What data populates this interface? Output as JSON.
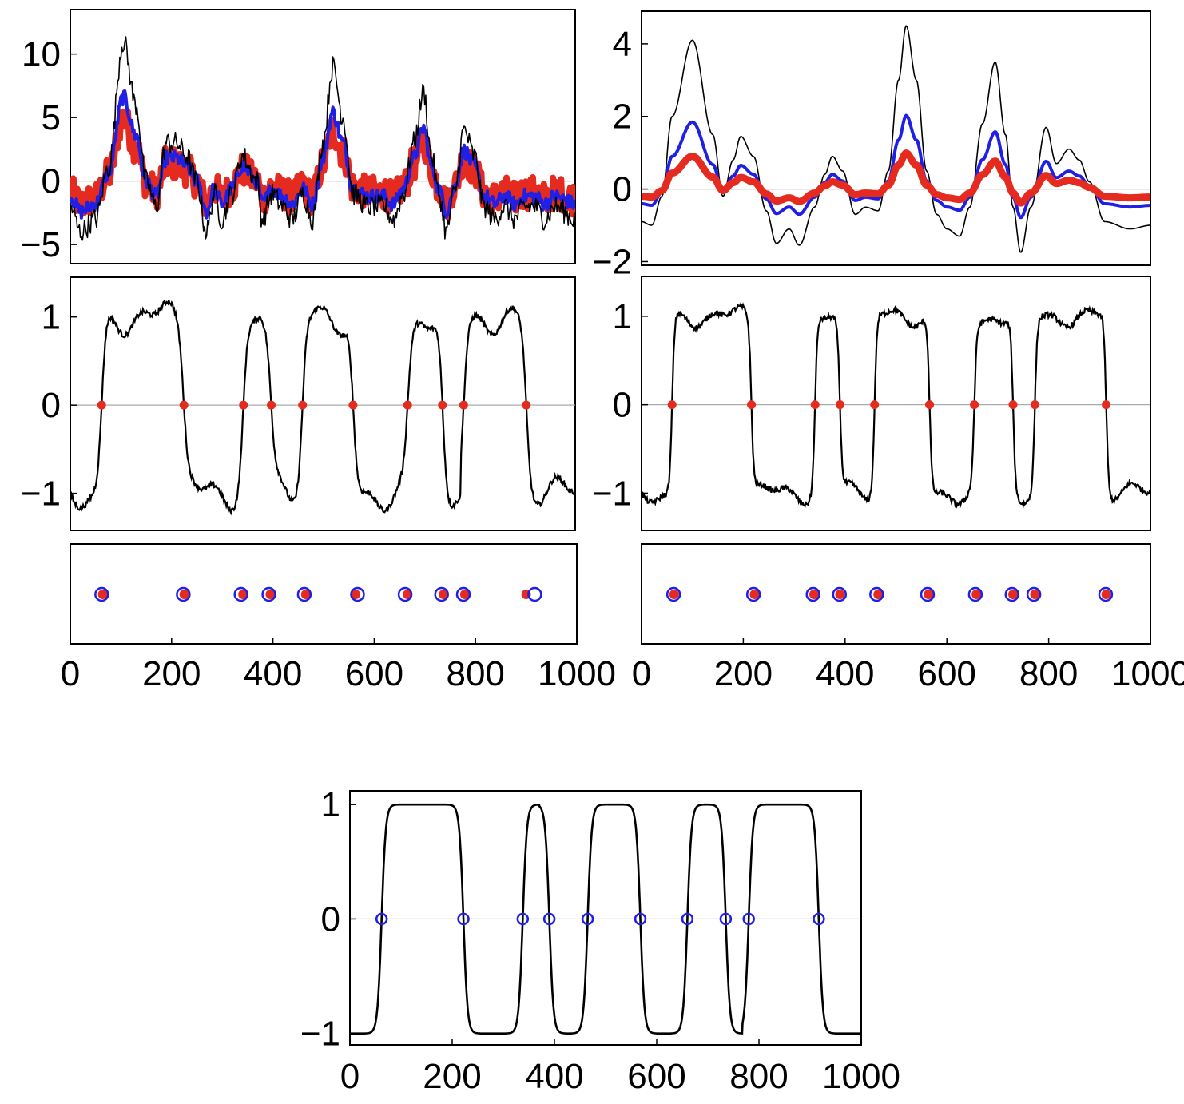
{
  "chart_data": [
    {
      "id": "panel-top-left",
      "type": "line",
      "xlim": [
        0,
        1000
      ],
      "ylim": [
        -6.5,
        13.5
      ],
      "yticks": [
        10,
        5,
        0,
        -5
      ],
      "ytick_labels": [
        "10",
        "5",
        "0",
        "−5"
      ],
      "series": [
        {
          "name": "black",
          "color": "#000000",
          "width": 1.6,
          "smooth_sigma": 6,
          "noise_amp": 0.9,
          "knots": [
            [
              0,
              -2
            ],
            [
              20,
              -4
            ],
            [
              50,
              -3
            ],
            [
              75,
              1
            ],
            [
              105,
              11
            ],
            [
              130,
              6
            ],
            [
              150,
              0
            ],
            [
              170,
              -2
            ],
            [
              190,
              3
            ],
            [
              210,
              3
            ],
            [
              230,
              2
            ],
            [
              250,
              0
            ],
            [
              270,
              -4
            ],
            [
              285,
              -1
            ],
            [
              300,
              -3
            ],
            [
              320,
              -1
            ],
            [
              340,
              2
            ],
            [
              370,
              0
            ],
            [
              380,
              -3
            ],
            [
              400,
              -1
            ],
            [
              420,
              -2
            ],
            [
              440,
              -3
            ],
            [
              460,
              -1
            ],
            [
              480,
              -3
            ],
            [
              500,
              3
            ],
            [
              520,
              9
            ],
            [
              540,
              5
            ],
            [
              560,
              -1
            ],
            [
              590,
              -2
            ],
            [
              620,
              -2
            ],
            [
              640,
              -3
            ],
            [
              660,
              -1
            ],
            [
              680,
              3
            ],
            [
              700,
              7
            ],
            [
              715,
              2
            ],
            [
              730,
              -1
            ],
            [
              745,
              -4
            ],
            [
              760,
              -1
            ],
            [
              780,
              4
            ],
            [
              800,
              2
            ],
            [
              820,
              -2
            ],
            [
              840,
              -3
            ],
            [
              860,
              -2
            ],
            [
              880,
              -3
            ],
            [
              900,
              -2
            ],
            [
              920,
              -2
            ],
            [
              940,
              -3
            ],
            [
              960,
              -2
            ],
            [
              1000,
              -3
            ]
          ]
        },
        {
          "name": "blue",
          "color": "#1f1fe6",
          "width": 4,
          "scale": 0.6,
          "noise_amp": 0.6
        },
        {
          "name": "red",
          "color": "#e52b1f",
          "width": 8,
          "scale": 0.45,
          "noise_amp": 1.3
        }
      ]
    },
    {
      "id": "panel-top-right",
      "type": "line",
      "xlim": [
        0,
        1000
      ],
      "ylim": [
        -2.1,
        4.9
      ],
      "yticks": [
        4,
        2,
        0,
        -2
      ],
      "ytick_labels": [
        "4",
        "2",
        "0",
        "−2"
      ],
      "series": [
        {
          "name": "black",
          "color": "#000000",
          "width": 1.6,
          "knots": [
            [
              0,
              -0.9
            ],
            [
              20,
              -1.0
            ],
            [
              40,
              -0.2
            ],
            [
              60,
              2.0
            ],
            [
              100,
              4.1
            ],
            [
              140,
              1.5
            ],
            [
              160,
              -0.2
            ],
            [
              180,
              0.8
            ],
            [
              195,
              1.45
            ],
            [
              220,
              0.9
            ],
            [
              245,
              -0.6
            ],
            [
              265,
              -1.5
            ],
            [
              290,
              -1.1
            ],
            [
              310,
              -1.55
            ],
            [
              340,
              -0.5
            ],
            [
              360,
              0.4
            ],
            [
              375,
              0.9
            ],
            [
              395,
              0.5
            ],
            [
              420,
              -0.7
            ],
            [
              440,
              -0.5
            ],
            [
              465,
              -0.6
            ],
            [
              485,
              0.5
            ],
            [
              505,
              3.0
            ],
            [
              520,
              4.5
            ],
            [
              540,
              3.0
            ],
            [
              560,
              0.5
            ],
            [
              580,
              -0.7
            ],
            [
              600,
              -1.1
            ],
            [
              625,
              -1.3
            ],
            [
              645,
              -0.5
            ],
            [
              670,
              1.8
            ],
            [
              695,
              3.5
            ],
            [
              715,
              1.5
            ],
            [
              730,
              -0.5
            ],
            [
              745,
              -1.75
            ],
            [
              765,
              -0.5
            ],
            [
              795,
              1.7
            ],
            [
              815,
              0.7
            ],
            [
              840,
              1.1
            ],
            [
              860,
              0.8
            ],
            [
              880,
              0.2
            ],
            [
              910,
              -0.9
            ],
            [
              960,
              -1.1
            ],
            [
              1000,
              -1.0
            ]
          ]
        },
        {
          "name": "blue",
          "color": "#1f1fe6",
          "width": 4,
          "scale": 0.45
        },
        {
          "name": "red",
          "color": "#e52b1f",
          "width": 9,
          "scale": 0.22
        }
      ]
    },
    {
      "id": "panel-mid-left",
      "type": "line",
      "xlim": [
        0,
        1000
      ],
      "ylim": [
        -1.42,
        1.45
      ],
      "yticks": [
        1,
        0,
        -1
      ],
      "ytick_labels": [
        "1",
        "0",
        "−1"
      ],
      "sign_switch": [
        62,
        225,
        343,
        398,
        460,
        560,
        668,
        737,
        779,
        903
      ],
      "rise_width": 9,
      "start_sign": -1,
      "noise_amp": 0.03,
      "level_wobble": 0.13,
      "zero_crossings": [
        62,
        225,
        343,
        398,
        460,
        560,
        668,
        737,
        779,
        903
      ],
      "marker_color": "#e52b1f"
    },
    {
      "id": "panel-mid-right",
      "type": "line",
      "xlim": [
        0,
        1000
      ],
      "ylim": [
        -1.42,
        1.45
      ],
      "yticks": [
        1,
        0,
        -1
      ],
      "ytick_labels": [
        "1",
        "0",
        "−1"
      ],
      "sign_switch": [
        60,
        216,
        341,
        390,
        458,
        566,
        654,
        730,
        773,
        913
      ],
      "rise_width": 5,
      "start_sign": -1,
      "noise_amp": 0.03,
      "level_wobble": 0.08,
      "zero_crossings": [
        60,
        216,
        341,
        390,
        458,
        566,
        654,
        730,
        773,
        913
      ],
      "marker_color": "#e52b1f"
    },
    {
      "id": "panel-markers-left",
      "type": "scatter",
      "xlim": [
        0,
        1000
      ],
      "xticks": [
        0,
        200,
        400,
        600,
        800,
        1000
      ],
      "xtick_labels": [
        "0",
        "200",
        "400",
        "600",
        "800",
        "1000"
      ],
      "red_points": [
        64,
        225,
        341,
        395,
        465,
        563,
        666,
        737,
        779,
        900
      ],
      "blue_points": [
        62,
        223,
        337,
        392,
        462,
        567,
        661,
        733,
        776,
        917
      ]
    },
    {
      "id": "panel-markers-right",
      "type": "scatter",
      "xlim": [
        0,
        1000
      ],
      "xticks": [
        0,
        200,
        400,
        600,
        800,
        1000
      ],
      "xtick_labels": [
        "0",
        "200",
        "400",
        "600",
        "800",
        "1000"
      ],
      "red_points": [
        64,
        222,
        339,
        390,
        465,
        564,
        658,
        730,
        773,
        913
      ],
      "blue_points": [
        63,
        220,
        337,
        389,
        462,
        562,
        656,
        728,
        771,
        912
      ]
    },
    {
      "id": "panel-bottom",
      "type": "line",
      "xlim": [
        0,
        1000
      ],
      "ylim": [
        -1.1,
        1.12
      ],
      "yticks": [
        1,
        0,
        -1
      ],
      "ytick_labels": [
        "1",
        "0",
        "−1"
      ],
      "xticks": [
        0,
        200,
        400,
        600,
        800,
        1000
      ],
      "xtick_labels": [
        "0",
        "200",
        "400",
        "600",
        "800",
        "1000"
      ],
      "sign_switch": [
        62,
        222,
        338,
        390,
        465,
        568,
        660,
        735,
        780,
        917
      ],
      "rise_width": 8,
      "start_sign": -1,
      "zero_crossings": [
        62,
        222,
        338,
        390,
        465,
        568,
        660,
        735,
        780,
        917
      ],
      "marker_color": "#1f1fe6"
    }
  ]
}
